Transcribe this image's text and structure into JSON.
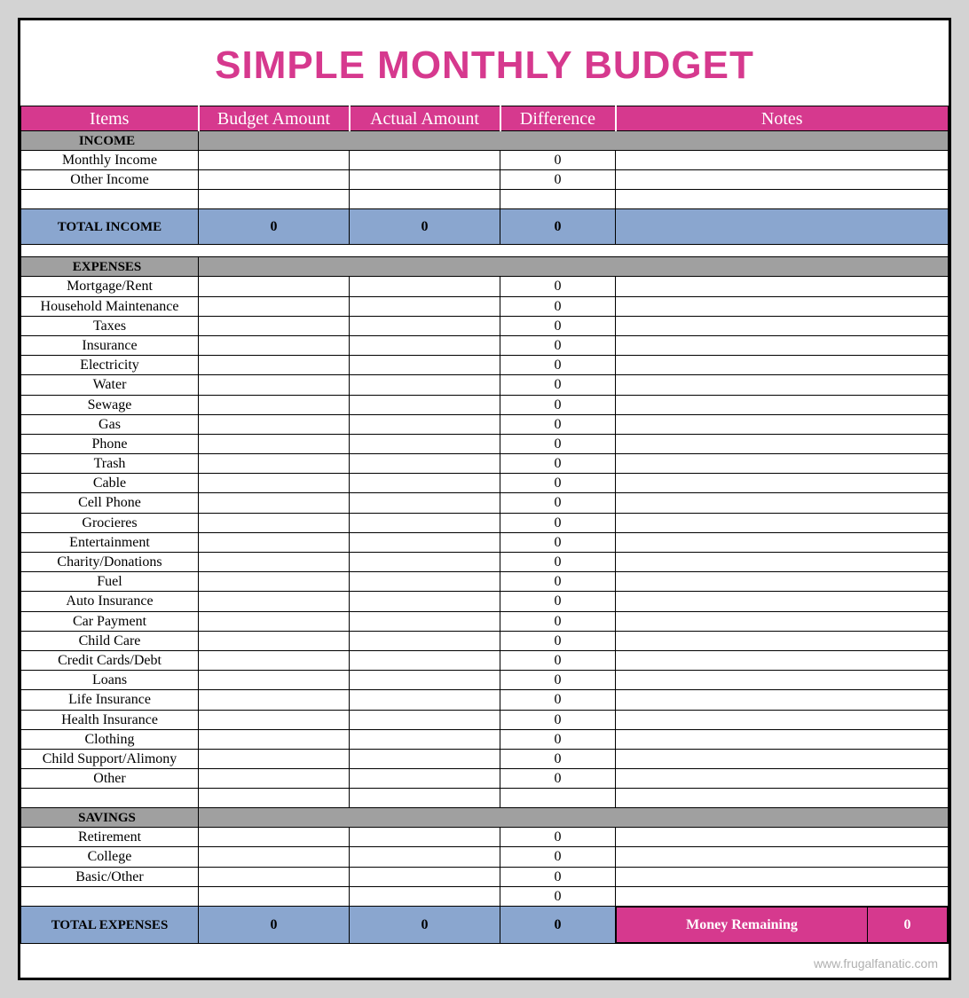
{
  "colors": {
    "page_bg": "#d3d3d3",
    "sheet_bg": "#ffffff",
    "border": "#000000",
    "title_color": "#d6398e",
    "header_bg": "#d6398e",
    "header_fg": "#ffffff",
    "section_bg": "#a0a0a0",
    "total_bg": "#8aa6cf",
    "money_bg": "#d6398e",
    "money_fg": "#ffffff",
    "footer_color": "#b0b0b0"
  },
  "typography": {
    "title_fontsize": 44,
    "header_fontsize": 20,
    "row_fontsize": 16,
    "section_fontsize": 15,
    "footer_fontsize": 14
  },
  "title": "SIMPLE MONTHLY BUDGET",
  "columns": [
    "Items",
    "Budget Amount",
    "Actual Amount",
    "Difference",
    "Notes"
  ],
  "sections": [
    {
      "name": "INCOME",
      "rows": [
        {
          "item": "Monthly Income",
          "budget": "",
          "actual": "",
          "diff": "0",
          "notes": ""
        },
        {
          "item": "Other Income",
          "budget": "",
          "actual": "",
          "diff": "0",
          "notes": ""
        },
        {
          "item": "",
          "budget": "",
          "actual": "",
          "diff": "",
          "notes": ""
        }
      ],
      "total": {
        "label": "TOTAL INCOME",
        "budget": "0",
        "actual": "0",
        "diff": "0",
        "notes": ""
      }
    },
    {
      "name": "EXPENSES",
      "rows": [
        {
          "item": "Mortgage/Rent",
          "budget": "",
          "actual": "",
          "diff": "0",
          "notes": ""
        },
        {
          "item": "Household Maintenance",
          "budget": "",
          "actual": "",
          "diff": "0",
          "notes": ""
        },
        {
          "item": "Taxes",
          "budget": "",
          "actual": "",
          "diff": "0",
          "notes": ""
        },
        {
          "item": "Insurance",
          "budget": "",
          "actual": "",
          "diff": "0",
          "notes": ""
        },
        {
          "item": "Electricity",
          "budget": "",
          "actual": "",
          "diff": "0",
          "notes": ""
        },
        {
          "item": "Water",
          "budget": "",
          "actual": "",
          "diff": "0",
          "notes": ""
        },
        {
          "item": "Sewage",
          "budget": "",
          "actual": "",
          "diff": "0",
          "notes": ""
        },
        {
          "item": "Gas",
          "budget": "",
          "actual": "",
          "diff": "0",
          "notes": ""
        },
        {
          "item": "Phone",
          "budget": "",
          "actual": "",
          "diff": "0",
          "notes": ""
        },
        {
          "item": "Trash",
          "budget": "",
          "actual": "",
          "diff": "0",
          "notes": ""
        },
        {
          "item": "Cable",
          "budget": "",
          "actual": "",
          "diff": "0",
          "notes": ""
        },
        {
          "item": "Cell Phone",
          "budget": "",
          "actual": "",
          "diff": "0",
          "notes": ""
        },
        {
          "item": "Grocieres",
          "budget": "",
          "actual": "",
          "diff": "0",
          "notes": ""
        },
        {
          "item": "Entertainment",
          "budget": "",
          "actual": "",
          "diff": "0",
          "notes": ""
        },
        {
          "item": "Charity/Donations",
          "budget": "",
          "actual": "",
          "diff": "0",
          "notes": ""
        },
        {
          "item": "Fuel",
          "budget": "",
          "actual": "",
          "diff": "0",
          "notes": ""
        },
        {
          "item": "Auto Insurance",
          "budget": "",
          "actual": "",
          "diff": "0",
          "notes": ""
        },
        {
          "item": "Car Payment",
          "budget": "",
          "actual": "",
          "diff": "0",
          "notes": ""
        },
        {
          "item": "Child Care",
          "budget": "",
          "actual": "",
          "diff": "0",
          "notes": ""
        },
        {
          "item": "Credit Cards/Debt",
          "budget": "",
          "actual": "",
          "diff": "0",
          "notes": ""
        },
        {
          "item": "Loans",
          "budget": "",
          "actual": "",
          "diff": "0",
          "notes": ""
        },
        {
          "item": "Life Insurance",
          "budget": "",
          "actual": "",
          "diff": "0",
          "notes": ""
        },
        {
          "item": "Health Insurance",
          "budget": "",
          "actual": "",
          "diff": "0",
          "notes": ""
        },
        {
          "item": "Clothing",
          "budget": "",
          "actual": "",
          "diff": "0",
          "notes": ""
        },
        {
          "item": "Child Support/Alimony",
          "budget": "",
          "actual": "",
          "diff": "0",
          "notes": ""
        },
        {
          "item": "Other",
          "budget": "",
          "actual": "",
          "diff": "0",
          "notes": ""
        },
        {
          "item": "",
          "budget": "",
          "actual": "",
          "diff": "",
          "notes": ""
        }
      ]
    },
    {
      "name": "SAVINGS",
      "rows": [
        {
          "item": "Retirement",
          "budget": "",
          "actual": "",
          "diff": "0",
          "notes": ""
        },
        {
          "item": "College",
          "budget": "",
          "actual": "",
          "diff": "0",
          "notes": ""
        },
        {
          "item": "Basic/Other",
          "budget": "",
          "actual": "",
          "diff": "0",
          "notes": ""
        },
        {
          "item": "",
          "budget": "",
          "actual": "",
          "diff": "0",
          "notes": ""
        }
      ]
    }
  ],
  "grand_total": {
    "label": "TOTAL EXPENSES",
    "budget": "0",
    "actual": "0",
    "diff": "0"
  },
  "money_remaining": {
    "label": "Money Remaining",
    "value": "0"
  },
  "footer": "www.frugalfanatic.com"
}
